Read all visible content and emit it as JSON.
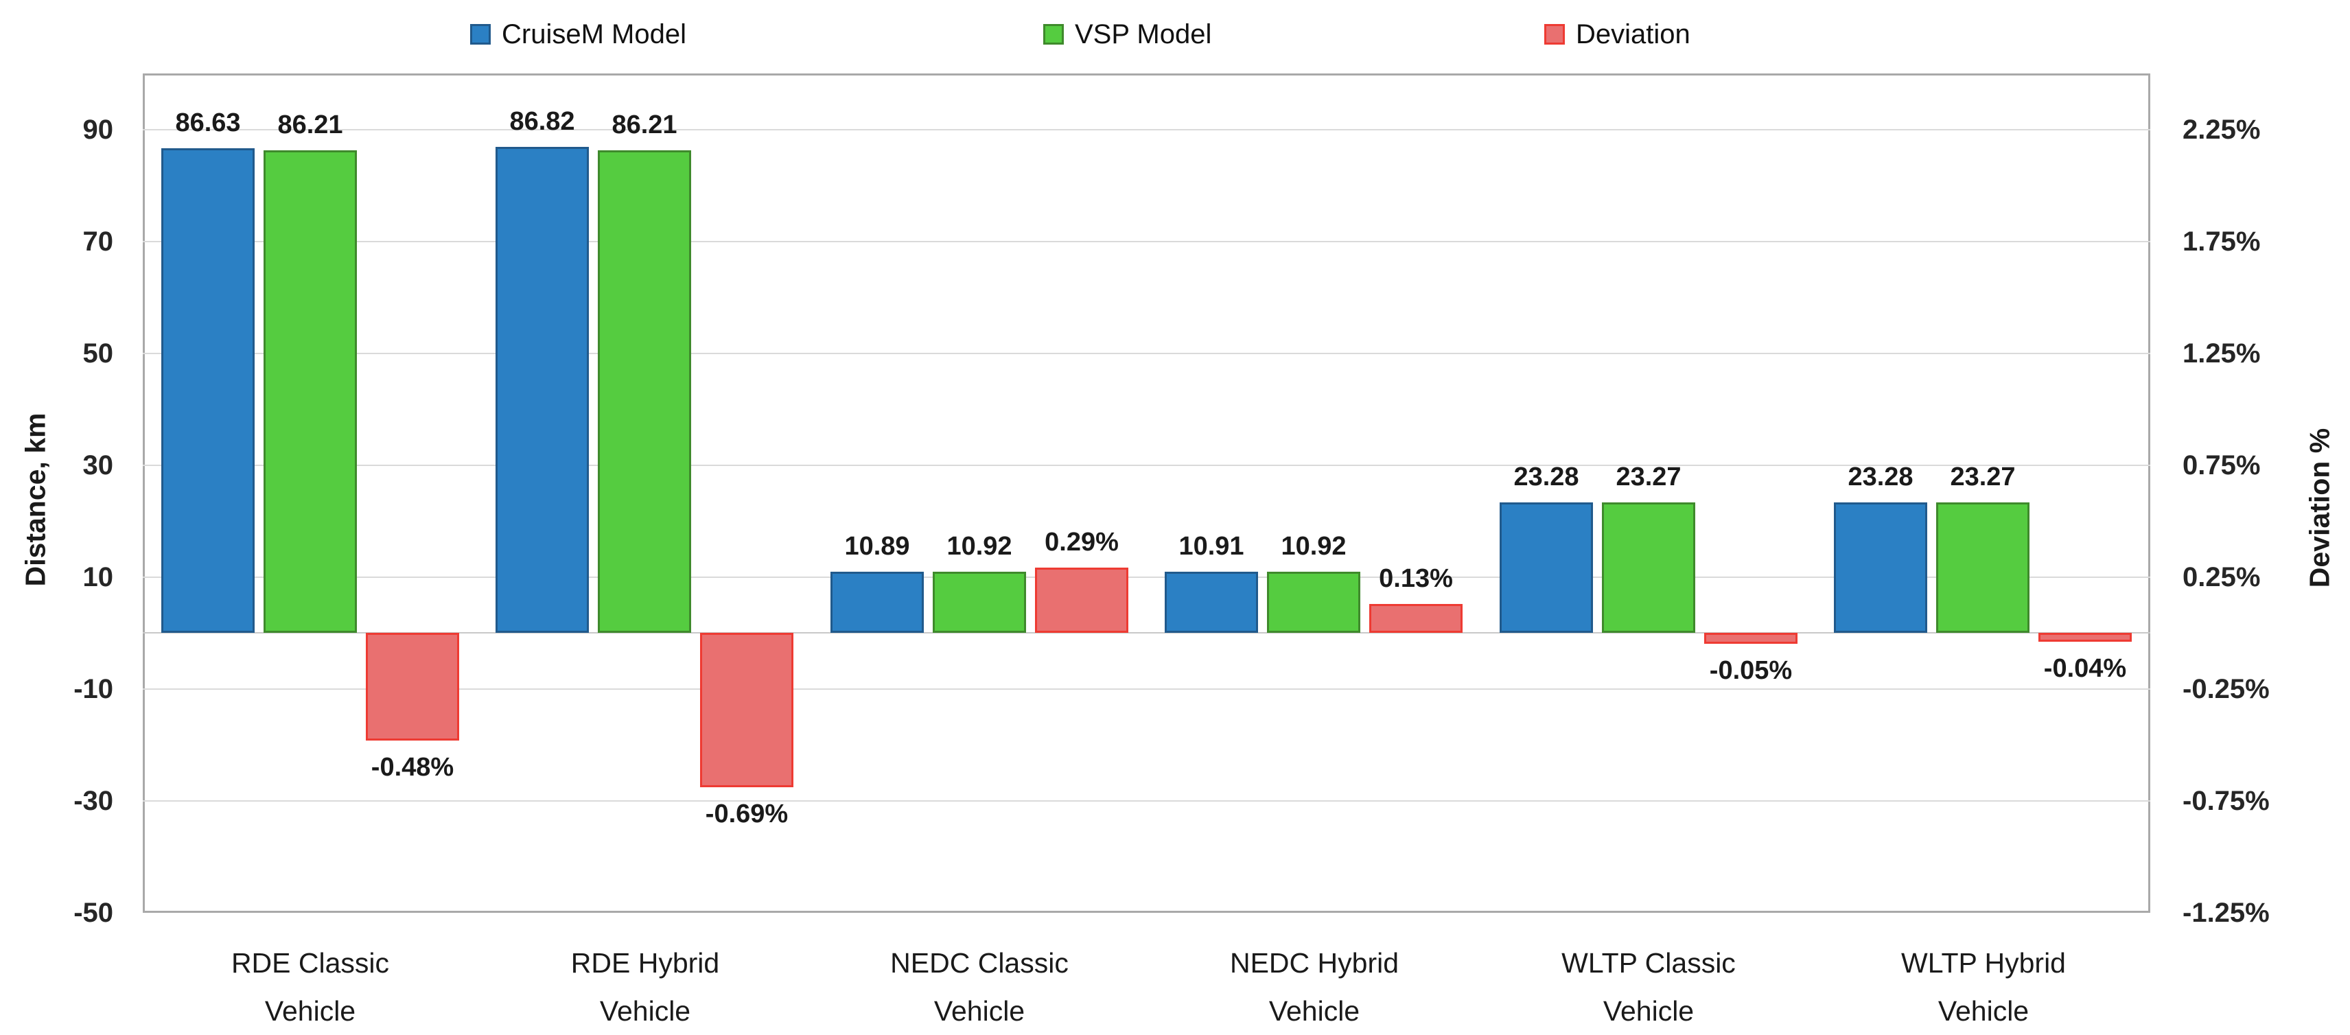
{
  "chart_data": {
    "type": "bar",
    "title": "",
    "legend_position": "top",
    "grid": true,
    "categories": [
      "RDE Classic Vehicle",
      "RDE Hybrid Vehicle",
      "NEDC Classic Vehicle",
      "NEDC Hybrid Vehicle",
      "WLTP Classic Vehicle",
      "WLTP Hybrid Vehicle"
    ],
    "category_lines": [
      [
        "RDE Classic",
        "Vehicle"
      ],
      [
        "RDE Hybrid",
        "Vehicle"
      ],
      [
        "NEDC Classic",
        "Vehicle"
      ],
      [
        "NEDC Hybrid",
        "Vehicle"
      ],
      [
        "WLTP Classic",
        "Vehicle"
      ],
      [
        "WLTP Hybrid",
        "Vehicle"
      ]
    ],
    "series": [
      {
        "name": "CruiseM Model",
        "axis": "left",
        "unit": "km",
        "color": "#2b80c4",
        "border_color": "#215a8c",
        "values": [
          86.63,
          86.82,
          10.89,
          10.91,
          23.28,
          23.28
        ],
        "labels": [
          "86.63",
          "86.82",
          "10.89",
          "10.91",
          "23.28",
          "23.28"
        ]
      },
      {
        "name": "VSP Model",
        "axis": "left",
        "unit": "km",
        "color": "#55cc40",
        "border_color": "#3f8a2c",
        "values": [
          86.21,
          86.21,
          10.92,
          10.92,
          23.27,
          23.27
        ],
        "labels": [
          "86.21",
          "86.21",
          "10.92",
          "10.92",
          "23.27",
          "23.27"
        ]
      },
      {
        "name": "Deviation",
        "axis": "right",
        "unit": "%",
        "color": "#e97070",
        "border_color": "#ee3b33",
        "values": [
          -0.48,
          -0.69,
          0.29,
          0.13,
          -0.05,
          -0.04
        ],
        "labels": [
          "-0.48%",
          "-0.69%",
          "0.29%",
          "0.13%",
          "-0.05%",
          "-0.04%"
        ]
      }
    ],
    "left_axis": {
      "title": "Distance, km",
      "tick_labels": [
        "90",
        "70",
        "50",
        "30",
        "10",
        "-10",
        "-30",
        "-50"
      ],
      "min": -50,
      "max": 100
    },
    "right_axis": {
      "title": "Deviation %",
      "tick_labels": [
        "2.25%",
        "1.75%",
        "1.25%",
        "0.75%",
        "0.25%",
        "-0.25%",
        "-0.75%",
        "-1.25%"
      ],
      "min": -1.25,
      "max": 2.5
    },
    "km_per_percent": 40
  },
  "colors": {
    "gridline": "#dadada",
    "plot_border": "#a9a9a9",
    "text": "#1a1a1a"
  }
}
